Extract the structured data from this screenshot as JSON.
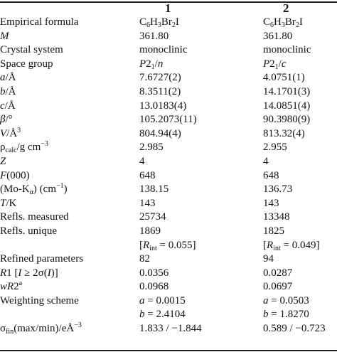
{
  "header": {
    "col1": "1",
    "col2": "2"
  },
  "rows": [
    {
      "label": "Empirical formula",
      "v1": "C6H3Br2I",
      "v2": "C6H3Br2I"
    },
    {
      "label": "M",
      "v1": "361.80",
      "v2": "361.80"
    },
    {
      "label": "Crystal system",
      "v1": "monoclinic",
      "v2": "monoclinic"
    },
    {
      "label": "Space group",
      "v1": "P21/n",
      "v2": "P21/c"
    },
    {
      "label": "a/Å",
      "v1": "7.6727(2)",
      "v2": "4.0751(1)"
    },
    {
      "label": "b/Å",
      "v1": "8.3511(2)",
      "v2": "14.1701(3)"
    },
    {
      "label": "c/Å",
      "v1": "13.0183(4)",
      "v2": "14.0851(4)"
    },
    {
      "label": "β/°",
      "v1": "105.2073(11)",
      "v2": "90.3980(9)"
    },
    {
      "label": "V/Å3",
      "v1": "804.94(4)",
      "v2": "813.32(4)"
    },
    {
      "label": "ρcalc/g cm−3",
      "v1": "2.985",
      "v2": "2.955"
    },
    {
      "label": "Z",
      "v1": "4",
      "v2": "4"
    },
    {
      "label": "F(000)",
      "v1": "648",
      "v2": "648"
    },
    {
      "label": "(Mo-Kα) (cm−1)",
      "v1": "138.15",
      "v2": "136.73"
    },
    {
      "label": "T/K",
      "v1": "143",
      "v2": "143"
    },
    {
      "label": "Refls. measured",
      "v1": "25734",
      "v2": "13348"
    },
    {
      "label": "Refls. unique",
      "v1": "1869",
      "v2": "1825"
    },
    {
      "label": "",
      "v1": "[Rint = 0.055]",
      "v2": "[Rint = 0.049]"
    },
    {
      "label": "Refined parameters",
      "v1": "82",
      "v2": "94"
    },
    {
      "label": "R1 [I ≥ 2σ(I)]",
      "v1": "0.0356",
      "v2": "0.0287"
    },
    {
      "label": "wR2a",
      "v1": "0.0968",
      "v2": "0.0697"
    },
    {
      "label": "Weighting scheme",
      "v1": "a = 0.0015",
      "v2": "a = 0.0503"
    },
    {
      "label": "",
      "v1": "b = 2.4104",
      "v2": "b = 1.8270"
    },
    {
      "label": "σfin(max/min)/eÅ−3",
      "v1": "1.833 / −1.844",
      "v2": "0.589 / −0.723"
    }
  ]
}
